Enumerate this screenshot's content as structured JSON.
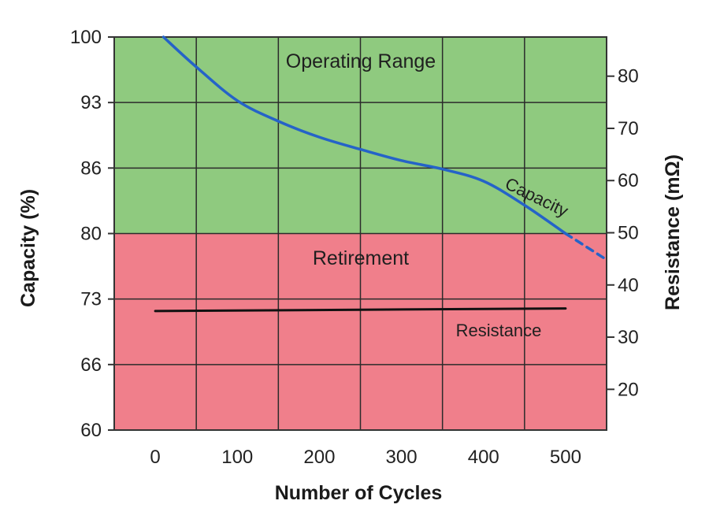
{
  "chart_data": {
    "type": "line",
    "xlabel": "Number of Cycles",
    "ylabel_left": "Capacity (%)",
    "ylabel_right": "Resistance (mΩ)",
    "x_ticks": [
      0,
      100,
      200,
      300,
      400,
      500
    ],
    "xlim": [
      -50,
      550
    ],
    "left_y_ticks": [
      60,
      66,
      73,
      80,
      86,
      93,
      100
    ],
    "right_y_ticks": [
      20,
      30,
      40,
      50,
      60,
      70,
      80
    ],
    "right_ylim": [
      12.2,
      87.5
    ],
    "grid": true,
    "regions": [
      {
        "name": "Operating Range",
        "from_capacity": 80,
        "to_capacity": 100,
        "color": "#8fca7f"
      },
      {
        "name": "Retirement",
        "from_capacity": 60,
        "to_capacity": 80,
        "color": "#f07f8b"
      }
    ],
    "series": [
      {
        "name": "Capacity",
        "axis": "left",
        "color": "#2563c8",
        "x": [
          10,
          50,
          100,
          150,
          200,
          250,
          300,
          350,
          400,
          450,
          500
        ],
        "y": [
          100,
          96.8,
          93.2,
          91,
          89.3,
          88,
          86.8,
          85.9,
          84.8,
          82.6,
          80
        ]
      },
      {
        "name": "Capacity (projected)",
        "axis": "left",
        "color": "#2563c8",
        "dashed": true,
        "x": [
          500,
          550
        ],
        "y": [
          80,
          77.2
        ]
      },
      {
        "name": "Resistance",
        "axis": "right",
        "color": "#111111",
        "x": [
          0,
          500
        ],
        "y": [
          35,
          35.5
        ]
      }
    ]
  }
}
